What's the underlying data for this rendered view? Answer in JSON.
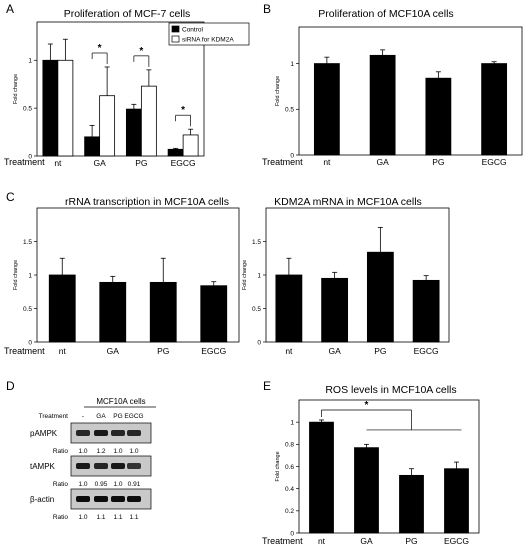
{
  "figure": {
    "treatment_label": "Treatment",
    "wb_row_label_treatment": "Treatment",
    "wb_ratio_label": "Ratio"
  },
  "chart_data": [
    {
      "panel": "A",
      "type": "bar",
      "title": "Proliferation of MCF-7 cells",
      "ylabel": "Fold change",
      "xlabel": "",
      "categories": [
        "nt",
        "GA",
        "PG",
        "EGCG"
      ],
      "ylim": [
        0,
        1.4
      ],
      "yticks": [
        0,
        0.5,
        1
      ],
      "ytick_labels": [
        "0",
        "0.5",
        "1"
      ],
      "legend": {
        "placement": "top-right",
        "entries": [
          "Control",
          "siRNA for KDM2A"
        ]
      },
      "series": [
        {
          "name": "Control",
          "color": "#000000",
          "values": [
            1.0,
            0.2,
            0.49,
            0.07
          ],
          "errors": [
            0.17,
            0.12,
            0.05,
            0.01
          ]
        },
        {
          "name": "siRNA for KDM2A",
          "color": "#ffffff",
          "values": [
            1.0,
            0.63,
            0.73,
            0.22
          ],
          "errors": [
            0.22,
            0.3,
            0.17,
            0.06
          ]
        }
      ],
      "significance": [
        {
          "category": "GA",
          "label": "*"
        },
        {
          "category": "PG",
          "label": "*"
        },
        {
          "category": "EGCG",
          "label": "*"
        }
      ]
    },
    {
      "panel": "B",
      "type": "bar",
      "title": "Proliferation of MCF10A cells",
      "ylabel": "Fold change",
      "xlabel": "",
      "categories": [
        "nt",
        "GA",
        "PG",
        "EGCG"
      ],
      "ylim": [
        0,
        1.4
      ],
      "yticks": [
        0,
        0.5,
        1
      ],
      "ytick_labels": [
        "0",
        "0.5",
        "1"
      ],
      "series": [
        {
          "color": "#000000",
          "values": [
            1.0,
            1.09,
            0.84,
            1.0
          ],
          "errors": [
            0.07,
            0.06,
            0.07,
            0.02
          ]
        }
      ]
    },
    {
      "panel": "C",
      "type": "bar",
      "title": "rRNA transcription in MCF10A cells",
      "ylabel": "Fold change",
      "xlabel": "",
      "categories": [
        "nt",
        "GA",
        "PG",
        "EGCG"
      ],
      "ylim": [
        0,
        2.0
      ],
      "yticks": [
        0,
        0.5,
        1,
        1.5
      ],
      "ytick_labels": [
        "0",
        "0.5",
        "1",
        "1.5"
      ],
      "series": [
        {
          "color": "#000000",
          "values": [
            1.0,
            0.89,
            0.89,
            0.84
          ],
          "errors": [
            0.25,
            0.09,
            0.36,
            0.06
          ]
        }
      ]
    },
    {
      "panel": "C2",
      "type": "bar",
      "title": "KDM2A mRNA in MCF10A cells",
      "ylabel": "Fold change",
      "xlabel": "",
      "categories": [
        "nt",
        "GA",
        "PG",
        "EGCG"
      ],
      "ylim": [
        0,
        2.0
      ],
      "yticks": [
        0,
        0.5,
        1,
        1.5
      ],
      "ytick_labels": [
        "0",
        "0.5",
        "1",
        "1.5"
      ],
      "series": [
        {
          "color": "#000000",
          "values": [
            1.0,
            0.95,
            1.34,
            0.92
          ],
          "errors": [
            0.25,
            0.09,
            0.37,
            0.07
          ]
        }
      ]
    },
    {
      "panel": "E",
      "type": "bar",
      "title": "ROS levels in MCF10A cells",
      "ylabel": "Fold change",
      "xlabel": "",
      "categories": [
        "nt",
        "GA",
        "PG",
        "EGCG"
      ],
      "ylim": [
        0,
        1.2
      ],
      "yticks": [
        0,
        0.2,
        0.4,
        0.6,
        0.8,
        1
      ],
      "ytick_labels": [
        "0",
        "0.2",
        "0.4",
        "0.6",
        "0.8",
        "1"
      ],
      "series": [
        {
          "color": "#000000",
          "values": [
            1.0,
            0.77,
            0.52,
            0.58
          ],
          "errors": [
            0.02,
            0.03,
            0.06,
            0.06
          ]
        }
      ],
      "significance": [
        {
          "label": "*",
          "from": "nt",
          "to": [
            "GA",
            "PG",
            "EGCG"
          ]
        }
      ]
    }
  ],
  "western_blot": {
    "panel": "D",
    "title": "MCF10A cells",
    "lanes": [
      "-",
      "GA",
      "PG",
      "EGCG"
    ],
    "blots": [
      {
        "name": "pAMPK",
        "ratios": [
          "1.0",
          "1.2",
          "1.0",
          "1.0"
        ],
        "intensity": [
          0.85,
          0.9,
          0.85,
          0.85
        ]
      },
      {
        "name": "tAMPK",
        "ratios": [
          "1.0",
          "0.95",
          "1.0",
          "0.91"
        ],
        "intensity": [
          0.9,
          0.85,
          0.9,
          0.8
        ]
      },
      {
        "name": "β-actin",
        "ratios": [
          "1.0",
          "1.1",
          "1.1",
          "1.1"
        ],
        "intensity": [
          0.95,
          0.95,
          0.95,
          0.95
        ]
      }
    ]
  },
  "panel_letters": [
    "A",
    "B",
    "C",
    "D",
    "E"
  ]
}
